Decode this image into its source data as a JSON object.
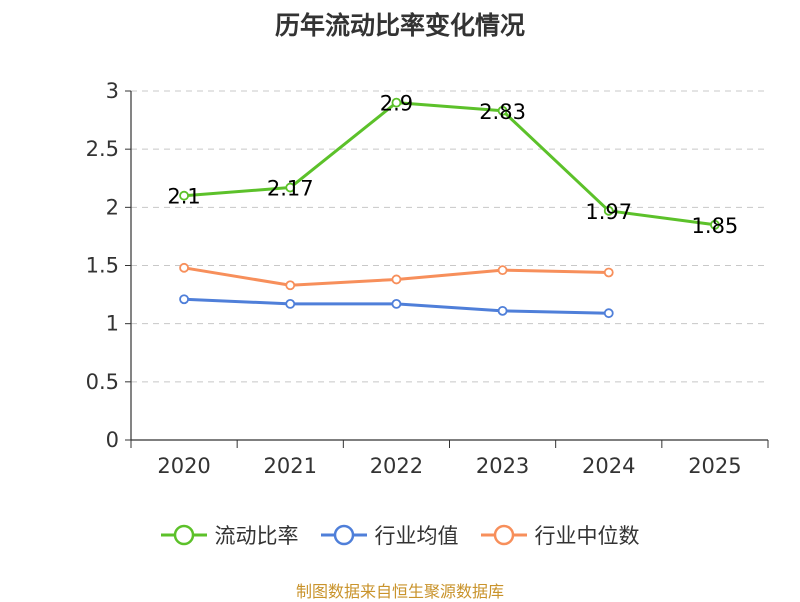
{
  "chart_data": {
    "type": "line",
    "title": "历年流动比率变化情况",
    "categories": [
      "2020",
      "2021",
      "2022",
      "2023",
      "2024",
      "2025"
    ],
    "series": [
      {
        "name": "流动比率",
        "color": "#5cc12a",
        "values": [
          2.1,
          2.17,
          2.9,
          2.83,
          1.97,
          1.85
        ],
        "labels": [
          "2.1",
          "2.17",
          "2.9",
          "2.83",
          "1.97",
          "1.85"
        ]
      },
      {
        "name": "行业均值",
        "color": "#4f7fd9",
        "values": [
          1.21,
          1.17,
          1.17,
          1.11,
          1.09,
          null
        ]
      },
      {
        "name": "行业中位数",
        "color": "#f78f5b",
        "values": [
          1.48,
          1.33,
          1.38,
          1.46,
          1.44,
          null
        ]
      }
    ],
    "ylim": [
      0,
      3
    ],
    "yticks": [
      "0",
      "0.5",
      "1",
      "1.5",
      "2",
      "2.5",
      "3"
    ],
    "grid": true,
    "legend_position": "bottom",
    "xlabel": "",
    "ylabel": ""
  },
  "source_note": "制图数据来自恒生聚源数据库"
}
